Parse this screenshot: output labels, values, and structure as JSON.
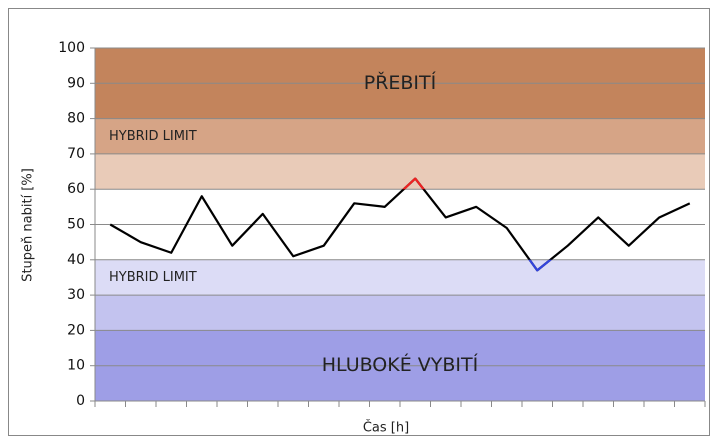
{
  "chart_data": {
    "type": "line",
    "y_label": "Stupeň nabití [%]",
    "x_label": "Čas [h]",
    "ylim": [
      0,
      100
    ],
    "yticks": [
      0,
      10,
      20,
      30,
      40,
      50,
      60,
      70,
      80,
      90,
      100
    ],
    "grid": true,
    "series": [
      {
        "color": "#000000",
        "values": [
          50,
          45,
          42,
          58,
          44,
          53,
          41,
          44,
          56,
          55,
          63,
          52,
          55,
          49,
          37,
          44,
          52,
          44,
          52,
          56
        ]
      }
    ],
    "highlights": [
      {
        "above": 60,
        "color": "#ee2222"
      },
      {
        "below": 40,
        "color": "#3344dd"
      }
    ],
    "bands": [
      {
        "from": 80,
        "to": 100,
        "color": "#c3845c",
        "label": "PŘEBITÍ"
      },
      {
        "from": 70,
        "to": 80,
        "color": "#d6a486",
        "label": "HYBRID LIMIT"
      },
      {
        "from": 60,
        "to": 70,
        "color": "#e9cbb8"
      },
      {
        "from": 30,
        "to": 40,
        "color": "#dcdcf6",
        "label": "HYBRID LIMIT"
      },
      {
        "from": 20,
        "to": 30,
        "color": "#c3c3ef"
      },
      {
        "from": 0,
        "to": 20,
        "color": "#9e9ee6",
        "label": "HLUBOKÉ VYBITÍ"
      }
    ]
  }
}
